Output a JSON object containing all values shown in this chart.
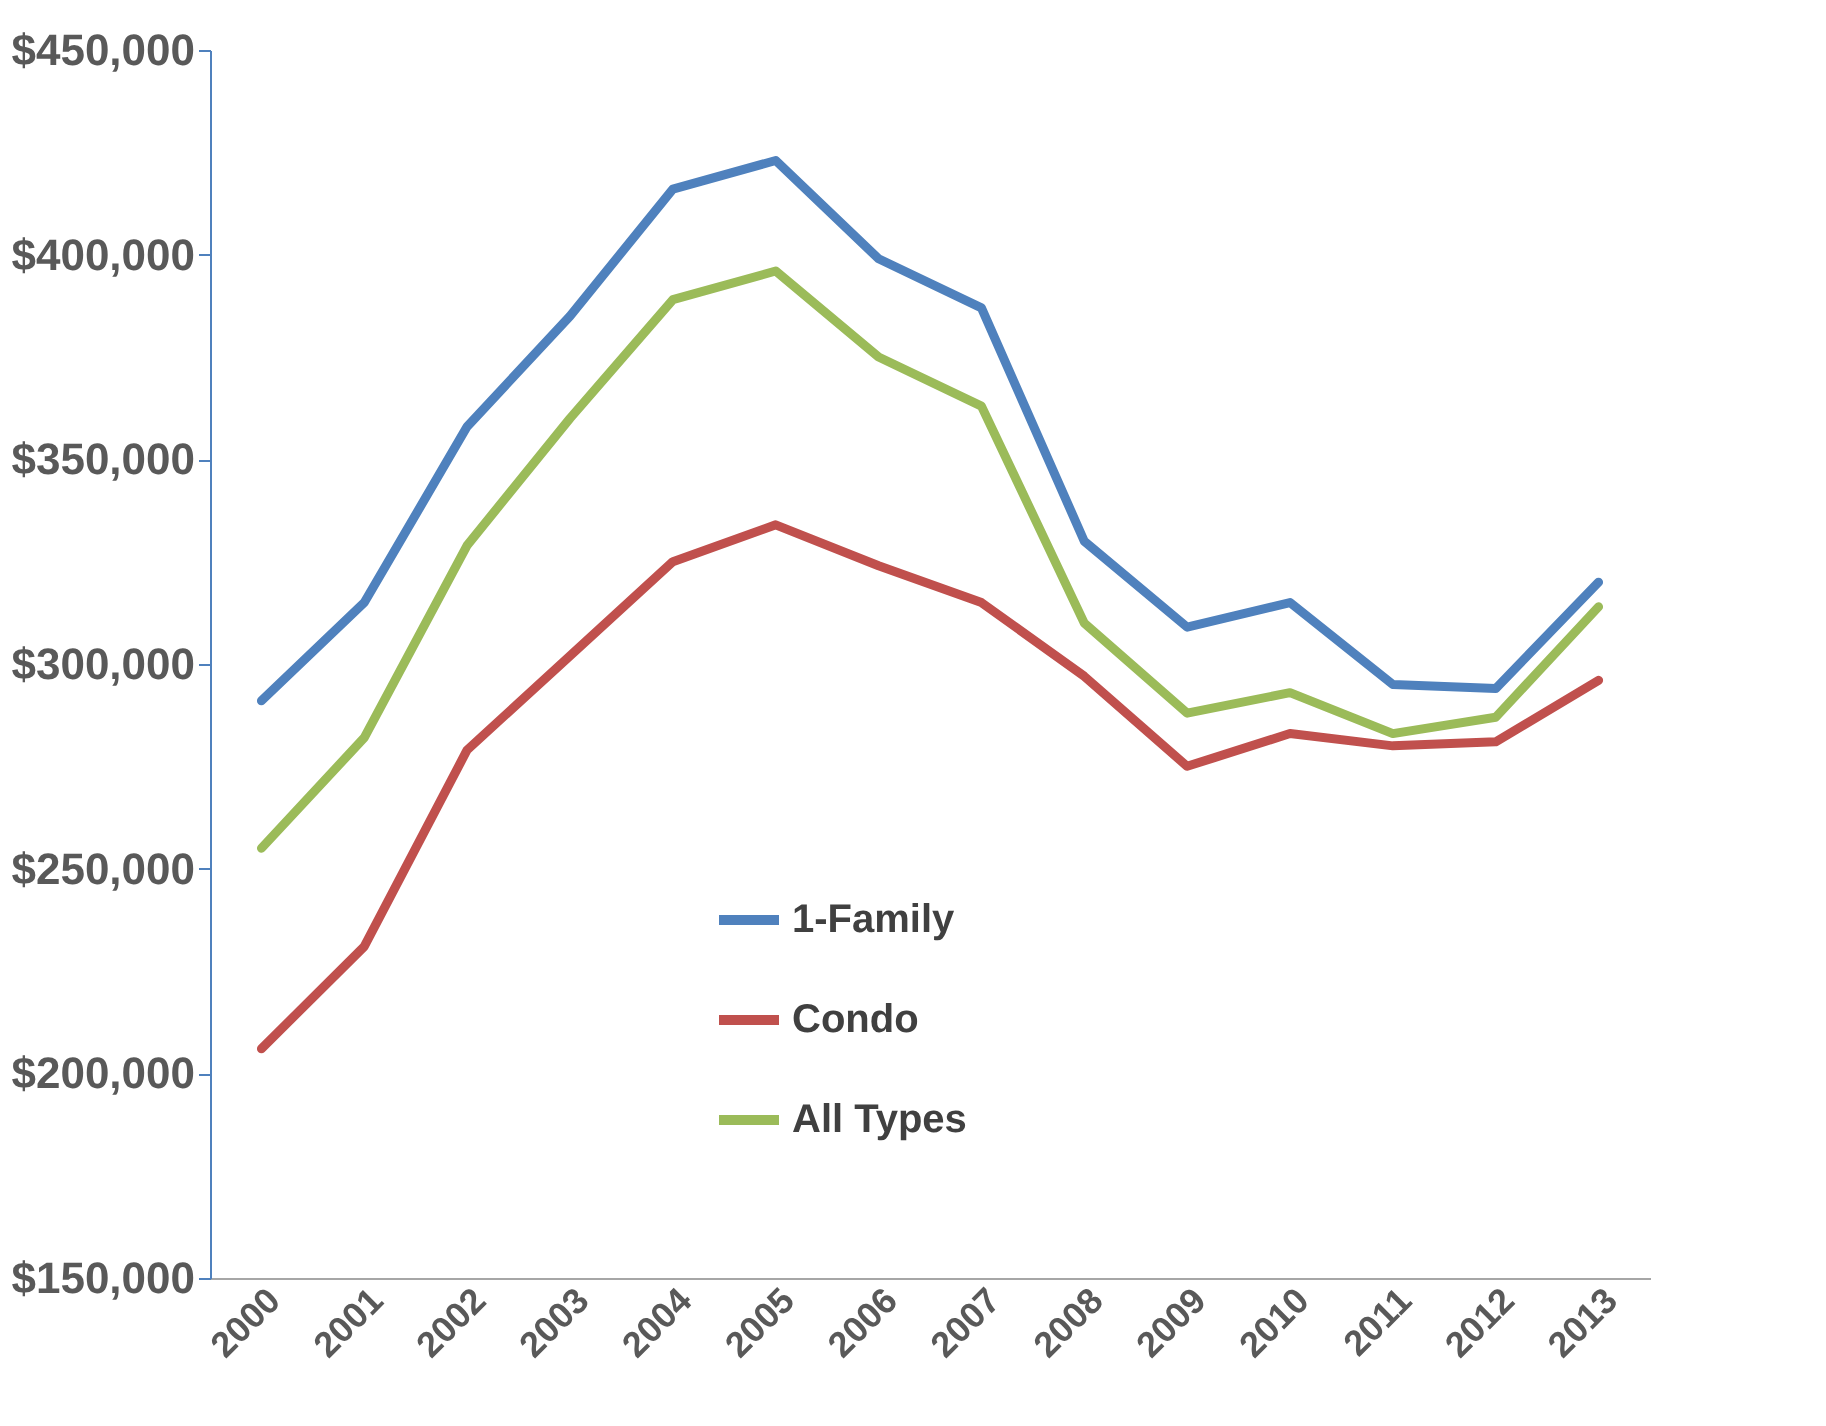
{
  "chart_data": {
    "type": "line",
    "categories": [
      "2000",
      "2001",
      "2002",
      "2003",
      "2004",
      "2005",
      "2006",
      "2007",
      "2008",
      "2009",
      "2010",
      "2011",
      "2012",
      "2013"
    ],
    "series": [
      {
        "name": "1-Family",
        "color": "#4f81bd",
        "values": [
          291000,
          315000,
          358000,
          385000,
          416000,
          423000,
          399000,
          387000,
          330000,
          309000,
          315000,
          295000,
          294000,
          320000
        ]
      },
      {
        "name": "Condo",
        "color": "#c0504d",
        "values": [
          206000,
          231000,
          279000,
          302000,
          325000,
          334000,
          324000,
          315000,
          297000,
          275000,
          283000,
          280000,
          281000,
          296000
        ]
      },
      {
        "name": "All Types",
        "color": "#9bbb59",
        "values": [
          255000,
          282000,
          329000,
          360000,
          389000,
          396000,
          375000,
          363000,
          310000,
          288000,
          293000,
          283000,
          287000,
          314000
        ]
      }
    ],
    "ylim": [
      150000,
      450000
    ],
    "yticks": [
      {
        "value": 150000,
        "label": "$150,000"
      },
      {
        "value": 200000,
        "label": "$200,000"
      },
      {
        "value": 250000,
        "label": "$250,000"
      },
      {
        "value": 300000,
        "label": "$300,000"
      },
      {
        "value": 350000,
        "label": "$350,000"
      },
      {
        "value": 400000,
        "label": "$400,000"
      },
      {
        "value": 450000,
        "label": "$450,000"
      }
    ],
    "grid": false,
    "legend": "bottom",
    "marker": "none",
    "line_style": "solid"
  }
}
